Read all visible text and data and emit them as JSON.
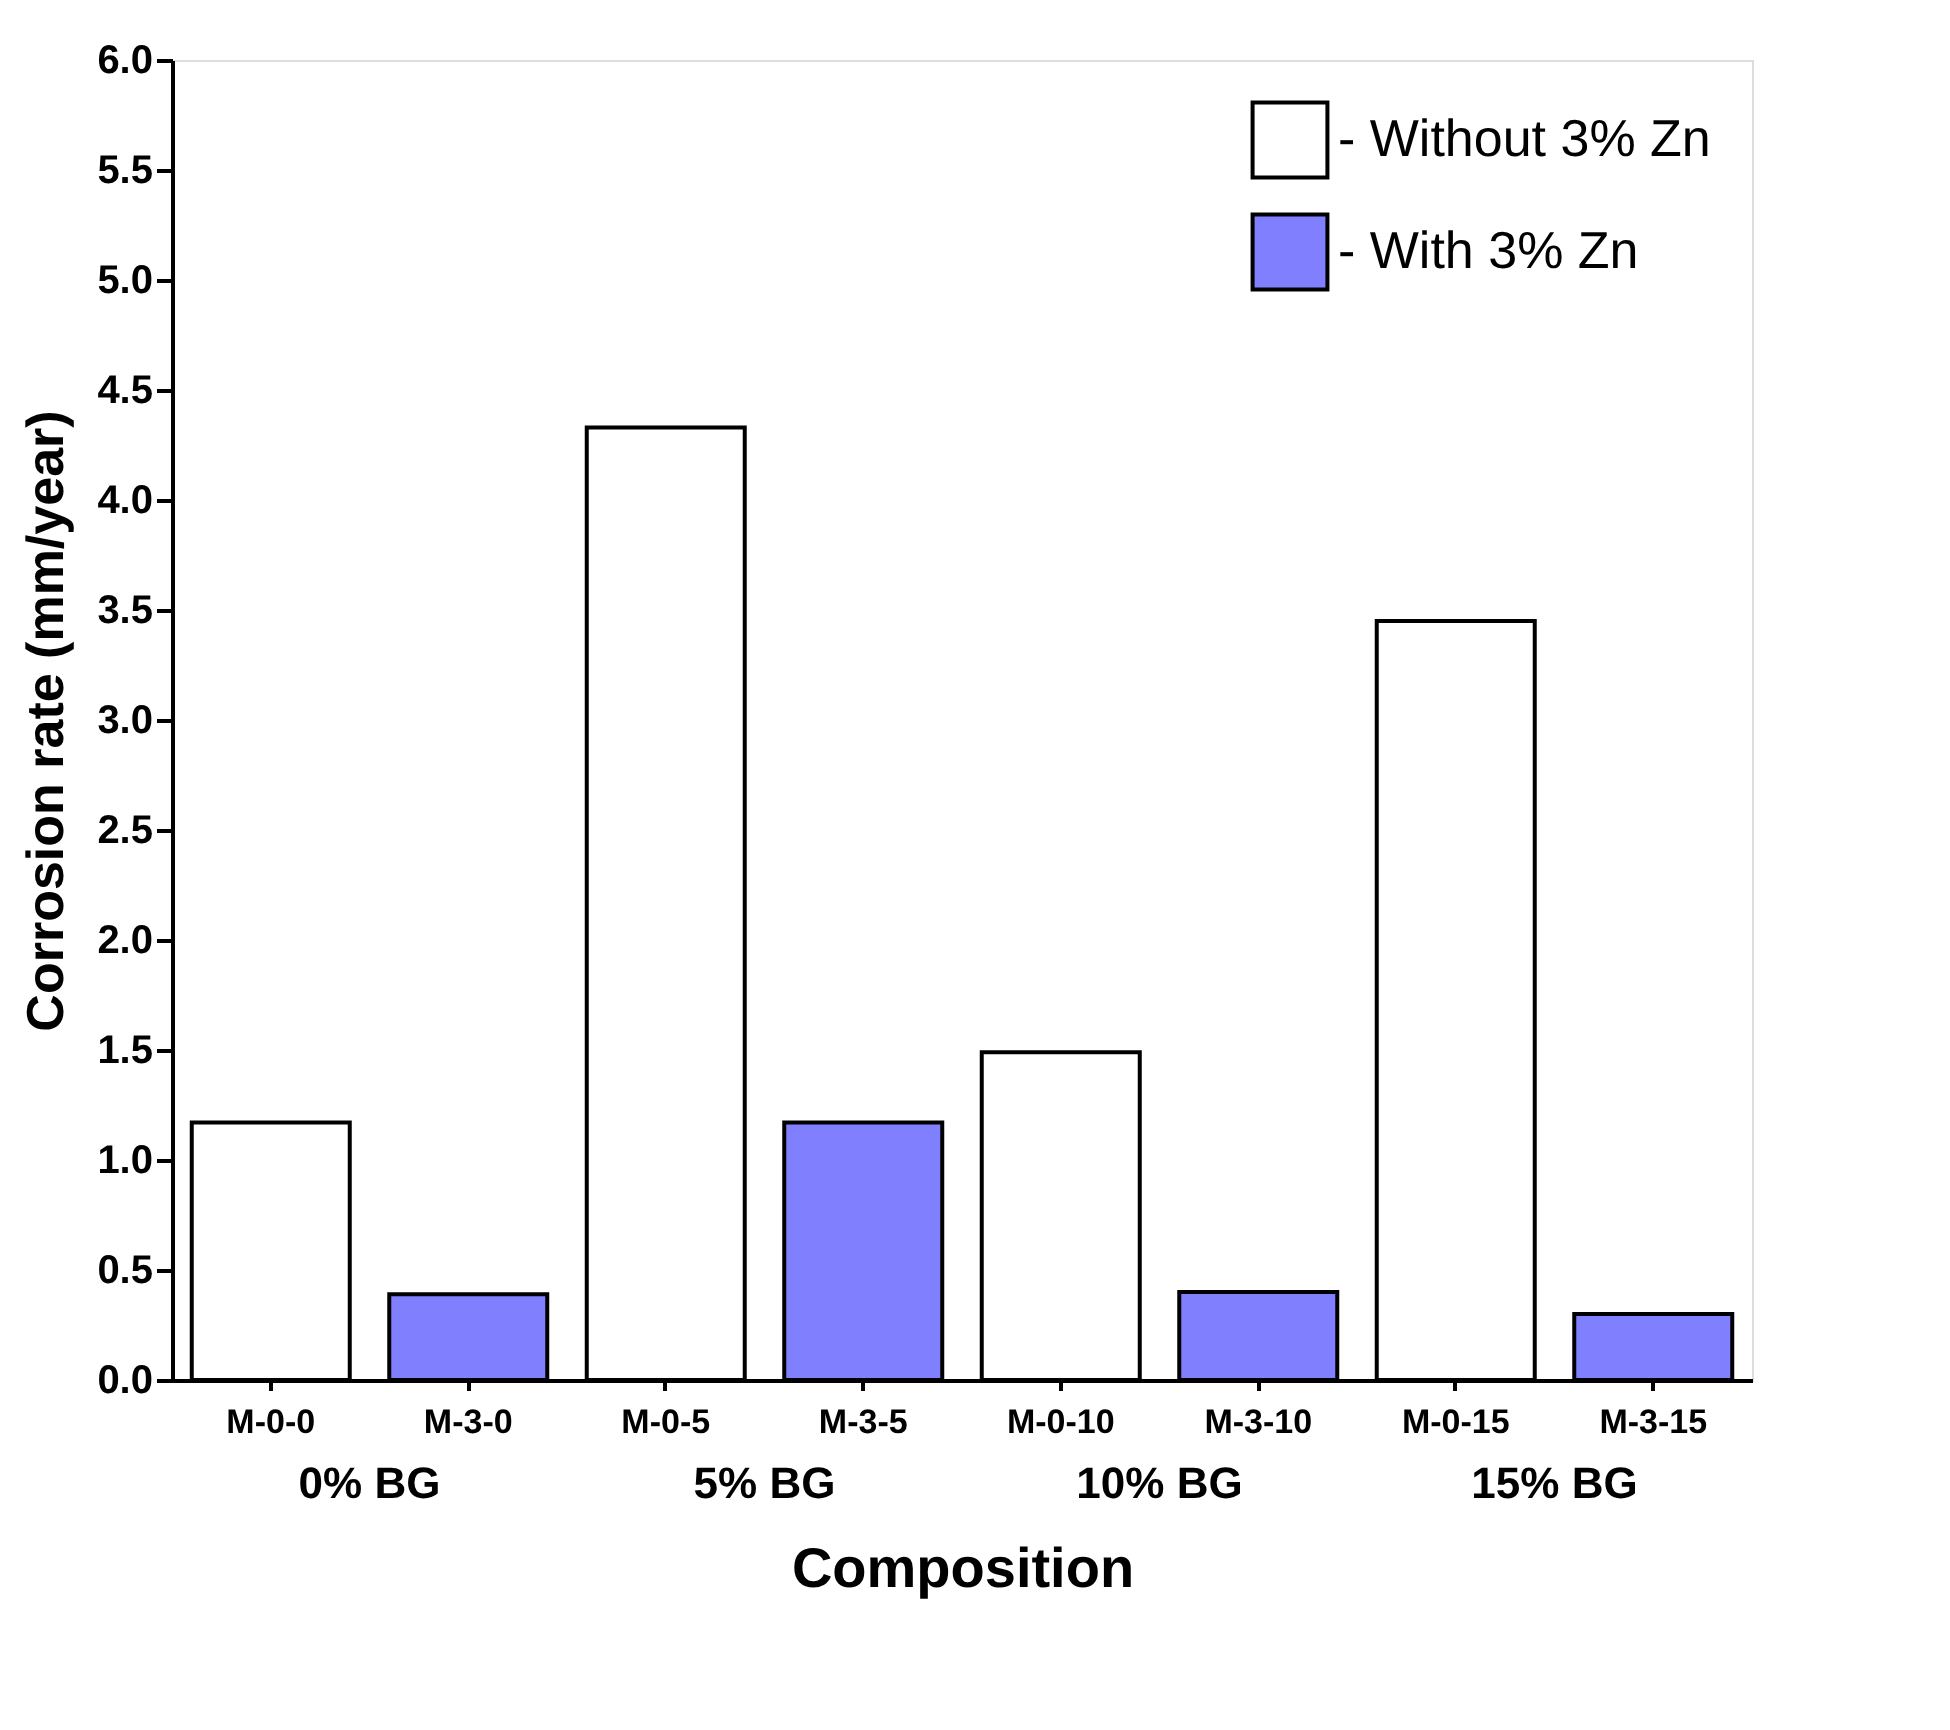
{
  "chart_data": {
    "type": "bar",
    "xlabel": "Composition",
    "ylabel": "Corrosion rate (mm/year)",
    "categories": [
      "M-0-0",
      "M-3-0",
      "M-0-5",
      "M-3-5",
      "M-0-10",
      "M-3-10",
      "M-0-15",
      "M-3-15"
    ],
    "series": [
      {
        "name": "- Without 3% Zn",
        "color": "#ffffff",
        "values": [
          1.17,
          null,
          4.33,
          null,
          1.49,
          null,
          3.45,
          null
        ]
      },
      {
        "name": "- With 3% Zn",
        "color": "#8080ff",
        "values": [
          null,
          0.39,
          null,
          1.17,
          null,
          0.4,
          null,
          0.3
        ]
      }
    ],
    "annotations": [
      "0% BG",
      "5% BG",
      "10% BG",
      "15% BG"
    ],
    "ylim": [
      0,
      6
    ],
    "yticks": [
      {
        "value": 0,
        "label": "0.0"
      },
      0.5,
      {
        "value": 1,
        "label": "1.0"
      },
      1.5,
      {
        "value": 2,
        "label": "2.0"
      },
      2.5,
      {
        "value": 3,
        "label": "3.0"
      },
      3.5,
      {
        "value": 4,
        "label": "4.0"
      },
      4.5,
      {
        "value": 5,
        "label": "5.0"
      },
      5.5,
      {
        "value": 6,
        "label": "6.0"
      }
    ],
    "grid": false,
    "legend": "top right"
  }
}
